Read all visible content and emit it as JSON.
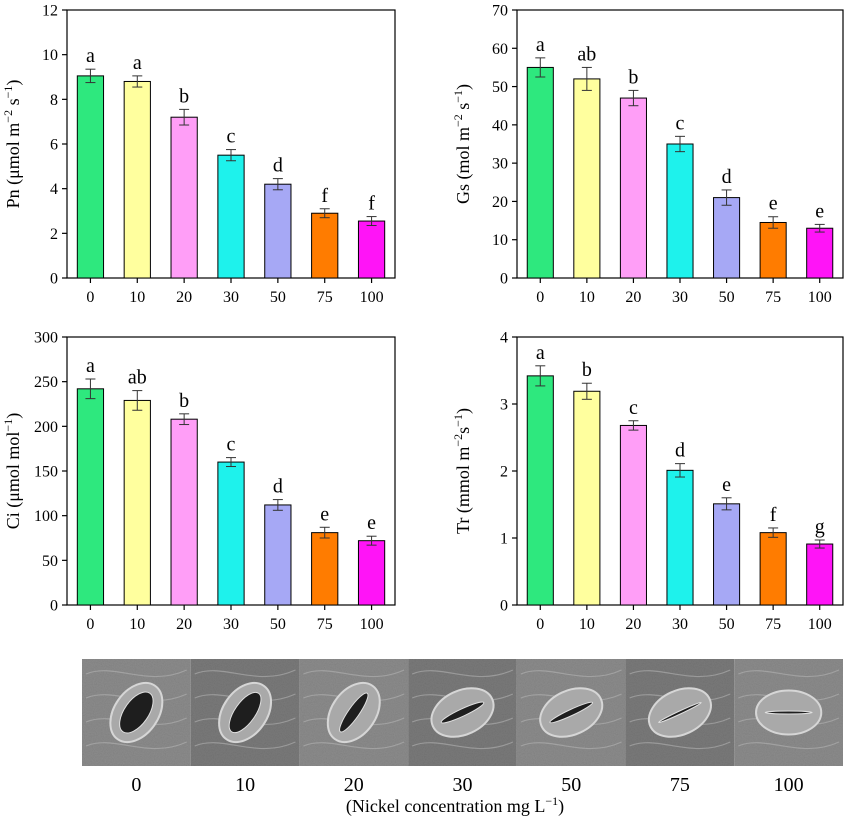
{
  "chart_data": [
    {
      "type": "bar",
      "categories": [
        "0",
        "10",
        "20",
        "30",
        "50",
        "75",
        "100"
      ],
      "values": [
        9.05,
        8.8,
        7.2,
        5.5,
        4.2,
        2.9,
        2.55
      ],
      "errors": [
        0.3,
        0.25,
        0.35,
        0.25,
        0.25,
        0.2,
        0.2
      ],
      "significance": [
        "a",
        "a",
        "b",
        "c",
        "d",
        "f",
        "f"
      ],
      "ylabel_main": "Pn (μmol m",
      "ylabel_sup1": "−2",
      "ylabel_mid": " s",
      "ylabel_sup2": "−1",
      "ylabel_end": ")",
      "ylim": [
        0,
        12
      ],
      "yticks": [
        "0",
        "2",
        "4",
        "6",
        "8",
        "10",
        "12"
      ]
    },
    {
      "type": "bar",
      "categories": [
        "0",
        "10",
        "20",
        "30",
        "50",
        "75",
        "100"
      ],
      "values": [
        55,
        52,
        47,
        35,
        21,
        14.5,
        13
      ],
      "errors": [
        2.5,
        3.0,
        2.0,
        2.0,
        2.0,
        1.5,
        1.0
      ],
      "significance": [
        "a",
        "ab",
        "b",
        "c",
        "d",
        "e",
        "e"
      ],
      "ylabel_main": "Gs (mol m",
      "ylabel_sup1": "−2",
      "ylabel_mid": " s",
      "ylabel_sup2": "−1",
      "ylabel_end": ")",
      "ylim": [
        0,
        70
      ],
      "yticks": [
        "0",
        "10",
        "20",
        "30",
        "40",
        "50",
        "60",
        "70"
      ]
    },
    {
      "type": "bar",
      "categories": [
        "0",
        "10",
        "20",
        "30",
        "50",
        "75",
        "100"
      ],
      "values": [
        242,
        229,
        208,
        160,
        112,
        81,
        72
      ],
      "errors": [
        11,
        11,
        6,
        5,
        6,
        6,
        5
      ],
      "significance": [
        "a",
        "ab",
        "b",
        "c",
        "d",
        "e",
        "e"
      ],
      "ylabel_main": "Ci (μmol mol",
      "ylabel_sup1": "−1",
      "ylabel_mid": ")",
      "ylabel_sup2": "",
      "ylabel_end": "",
      "ylim": [
        0,
        300
      ],
      "yticks": [
        "0",
        "50",
        "100",
        "150",
        "200",
        "250",
        "300"
      ]
    },
    {
      "type": "bar",
      "categories": [
        "0",
        "10",
        "20",
        "30",
        "50",
        "75",
        "100"
      ],
      "values": [
        3.42,
        3.19,
        2.68,
        2.01,
        1.51,
        1.08,
        0.91
      ],
      "errors": [
        0.15,
        0.12,
        0.07,
        0.1,
        0.09,
        0.07,
        0.06
      ],
      "significance": [
        "a",
        "b",
        "c",
        "d",
        "e",
        "f",
        "g"
      ],
      "ylabel_main": "Tr (mmol m",
      "ylabel_sup1": "−2",
      "ylabel_mid": "s",
      "ylabel_sup2": "−1",
      "ylabel_end": ")",
      "ylim": [
        0,
        4
      ],
      "yticks": [
        "0",
        "1",
        "2",
        "3",
        "4"
      ]
    }
  ],
  "bar_colors": [
    "#2ee87e",
    "#ffff9e",
    "#ff9ef7",
    "#1ef2ec",
    "#a6a8f5",
    "#ff7c00",
    "#ff14f7"
  ],
  "micrographs": {
    "labels": [
      "0",
      "10",
      "20",
      "30",
      "50",
      "75",
      "100"
    ],
    "stoma_openness": [
      1.0,
      0.85,
      0.45,
      0.3,
      0.25,
      0.1,
      0.05
    ]
  },
  "x_axis_title": "(Nickel concentration mg L",
  "x_axis_title_sup": "−1",
  "x_axis_title_end": ")"
}
